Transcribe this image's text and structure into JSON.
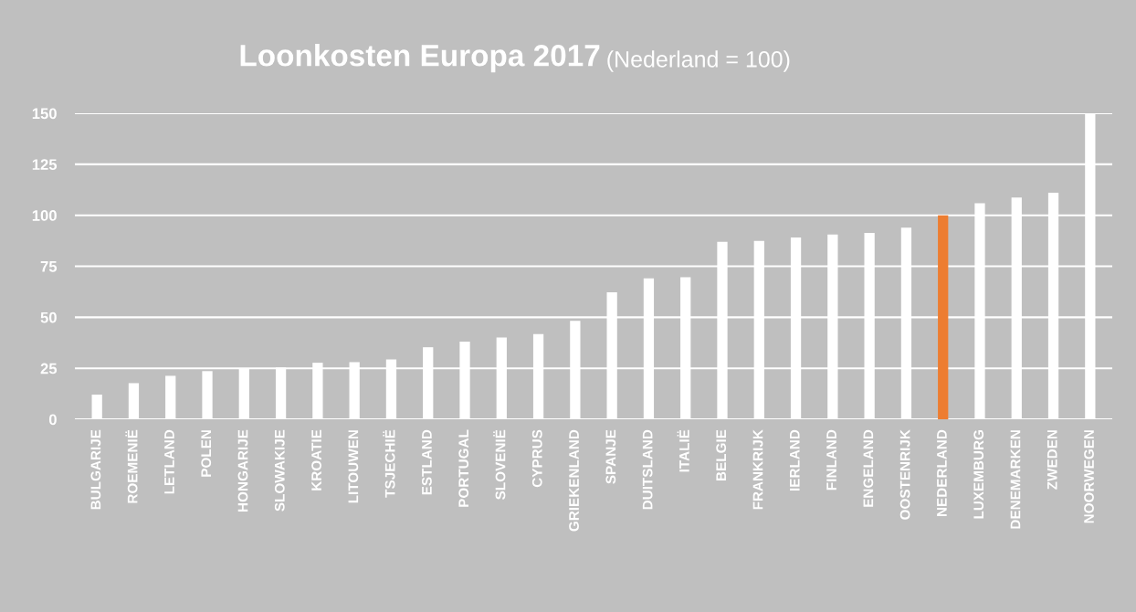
{
  "chart_data": {
    "type": "bar",
    "title": "Loonkosten Europa 2017",
    "subtitle": "(Nederland = 100)",
    "categories": [
      "BULGARIJE",
      "ROEMENIË",
      "LETLAND",
      "POLEN",
      "HONGARIJE",
      "SLOWAKIJE",
      "KROATIE",
      "LITOUWEN",
      "TSJECHIË",
      "ESTLAND",
      "PORTUGAL",
      "SLOVENIË",
      "CYPRUS",
      "GRIEKENLAND",
      "SPANJE",
      "DUITSLAND",
      "ITALIË",
      "BELGIE",
      "FRANKRIJK",
      "IERLAND",
      "FINLAND",
      "ENGELAND",
      "OOSTENRIJK",
      "NEDERLAND",
      "LUXEMBURG",
      "DENEMARKEN",
      "ZWEDEN",
      "NOORWEGEN"
    ],
    "values": [
      12.1,
      17.7,
      21.3,
      23.6,
      25,
      25.4,
      27.7,
      28,
      29.3,
      35.3,
      38.1,
      40.1,
      41.8,
      48.3,
      62.2,
      69.1,
      69.6,
      87,
      87.4,
      89.1,
      90.6,
      91.3,
      93.9,
      100,
      105.9,
      108.7,
      111.1,
      150
    ],
    "colors": [
      "#ffffff",
      "#ffffff",
      "#ffffff",
      "#ffffff",
      "#ffffff",
      "#ffffff",
      "#ffffff",
      "#ffffff",
      "#ffffff",
      "#ffffff",
      "#ffffff",
      "#ffffff",
      "#ffffff",
      "#ffffff",
      "#ffffff",
      "#ffffff",
      "#ffffff",
      "#ffffff",
      "#ffffff",
      "#ffffff",
      "#ffffff",
      "#ffffff",
      "#ffffff",
      "#ed7d31",
      "#ffffff",
      "#ffffff",
      "#ffffff",
      "#ffffff"
    ],
    "ylim": [
      0,
      150
    ],
    "yticks": [
      0,
      25,
      50,
      75,
      100,
      125,
      150
    ],
    "grid": "y"
  }
}
